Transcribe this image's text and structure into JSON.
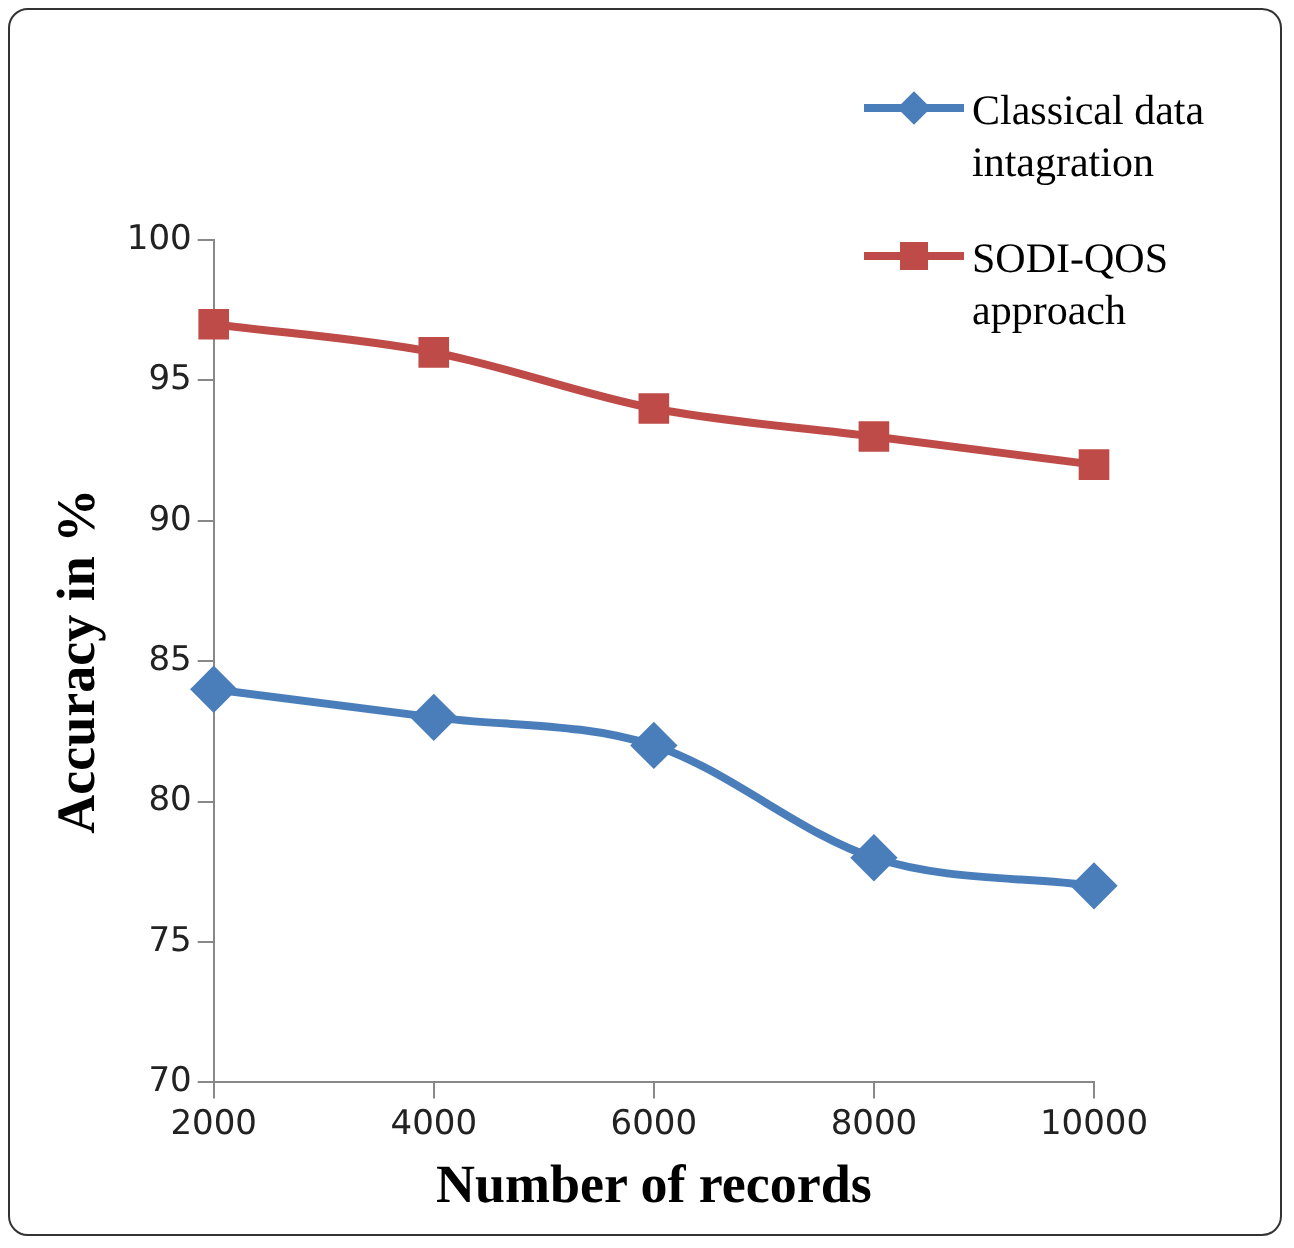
{
  "chart_data": {
    "type": "line",
    "xlabel": "Number of records",
    "ylabel": "Accuracy in %",
    "categories": [
      "2000",
      "4000",
      "6000",
      "8000",
      "10000"
    ],
    "series": [
      {
        "name": "Classical data intagration",
        "color": "#4a7ebb",
        "marker": "diamond",
        "values": [
          84,
          83,
          82,
          78,
          77
        ]
      },
      {
        "name": "SODI-QOS approach",
        "color": "#be4b48",
        "marker": "square",
        "values": [
          97,
          96,
          94,
          93,
          92
        ]
      }
    ],
    "ylim": [
      70,
      100
    ],
    "yticks": [
      70,
      75,
      80,
      85,
      90,
      95,
      100
    ],
    "grid": false,
    "legend": "top right"
  }
}
